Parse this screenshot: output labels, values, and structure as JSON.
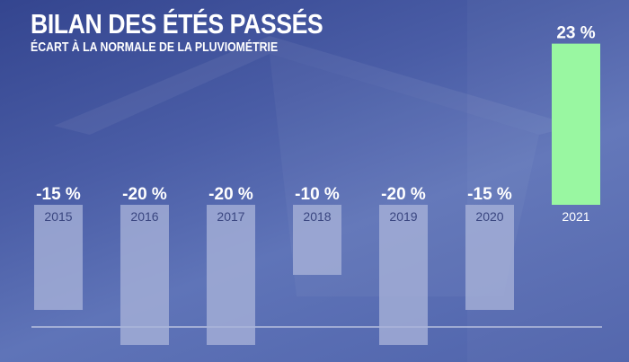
{
  "title": "BILAN DES ÉTÉS PASSÉS",
  "subtitle": "ÉCART À LA NORMALE DE LA PLUVIOMÉTRIE",
  "colors": {
    "background": "#4a5da6",
    "negative_bar": "#a8b2d8",
    "positive_bar": "#99f7a1",
    "positive_label": "#9ff7a6",
    "baseline": "#ffffff"
  },
  "chart_data": {
    "type": "bar",
    "title": "BILAN DES ÉTÉS PASSÉS",
    "subtitle": "ÉCART À LA NORMALE DE LA PLUVIOMÉTRIE",
    "categories": [
      "2015",
      "2016",
      "2017",
      "2018",
      "2019",
      "2020",
      "2021"
    ],
    "values": [
      -15,
      -20,
      -20,
      -10,
      -20,
      -15,
      23
    ],
    "value_labels": [
      "-15 %",
      "-20 %",
      "-20 %",
      "-10 %",
      "-20 %",
      "-15 %",
      "23 %"
    ],
    "unit": "%",
    "xlabel": "",
    "ylabel": "",
    "grid": false,
    "legend": "none"
  }
}
